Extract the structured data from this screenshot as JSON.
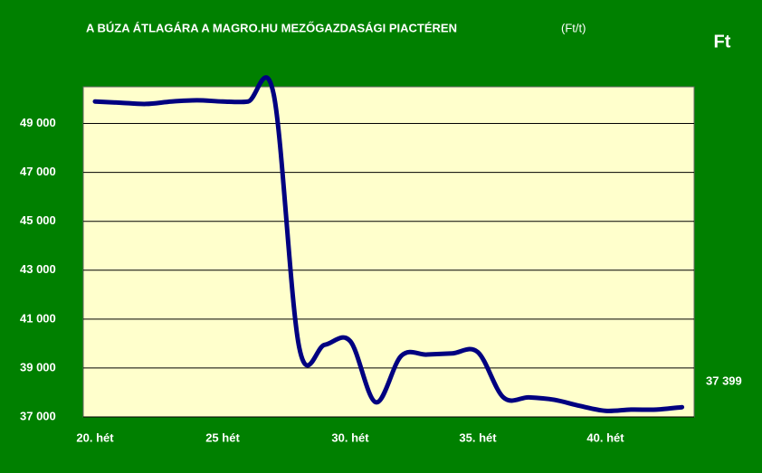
{
  "chart_data": {
    "type": "line",
    "title": "A BÚZA ÁTLAGÁRA A MAGRO.HU MEZŐGAZDASÁGI PIACTÉREN",
    "subtitle": "(Ft/t)",
    "y_label": "Ft",
    "categories": [
      "20. hét",
      null,
      null,
      null,
      null,
      "25 hét",
      null,
      null,
      null,
      null,
      "30. hét",
      null,
      null,
      null,
      null,
      "35. hét",
      null,
      null,
      null,
      null,
      "40. hét",
      null,
      null,
      null
    ],
    "values": [
      49900,
      49850,
      49800,
      49900,
      49950,
      49900,
      49900,
      50200,
      39850,
      39950,
      40100,
      37600,
      39500,
      39550,
      39600,
      39650,
      37800,
      37800,
      37700,
      37450,
      37250,
      37300,
      37300,
      37399
    ],
    "value_labels": [
      null,
      null,
      null,
      null,
      null,
      null,
      null,
      null,
      null,
      null,
      null,
      null,
      null,
      null,
      null,
      null,
      null,
      null,
      null,
      null,
      null,
      null,
      null,
      "37 399"
    ],
    "color": "#000080",
    "ylim": [
      37000,
      50500
    ],
    "yticks": [
      {
        "value": 37000,
        "label": "37 000"
      },
      {
        "value": 39000,
        "label": "39 000"
      },
      {
        "value": 41000,
        "label": "41 000"
      },
      {
        "value": 43000,
        "label": "43 000"
      },
      {
        "value": 45000,
        "label": "45 000"
      },
      {
        "value": 47000,
        "label": "47 000"
      },
      {
        "value": 49000,
        "label": "49 000"
      }
    ],
    "grid": true
  }
}
